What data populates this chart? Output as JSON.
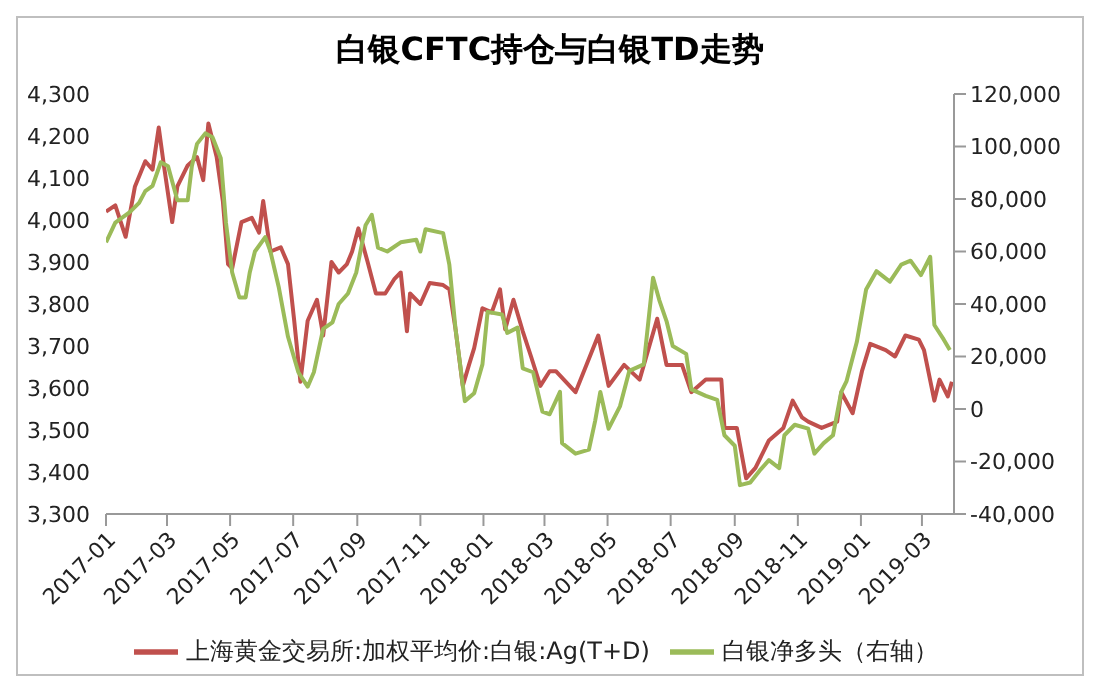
{
  "chart_data": {
    "type": "line",
    "title": "白银CFTC持仓与白银TD走势",
    "xlim": [
      "2017-01-01",
      "2019-04-01"
    ],
    "xticks": [
      "2017-01",
      "2017-03",
      "2017-05",
      "2017-07",
      "2017-09",
      "2017-11",
      "2018-01",
      "2018-03",
      "2018-05",
      "2018-07",
      "2018-09",
      "2018-11",
      "2019-01",
      "2019-03"
    ],
    "ylim": [
      3300,
      4300
    ],
    "yticks": [
      {
        "value": 3300,
        "label": "3,300"
      },
      {
        "value": 3400,
        "label": "3,400"
      },
      {
        "value": 3500,
        "label": "3,500"
      },
      {
        "value": 3600,
        "label": "3,600"
      },
      {
        "value": 3700,
        "label": "3,700"
      },
      {
        "value": 3800,
        "label": "3,800"
      },
      {
        "value": 3900,
        "label": "3,900"
      },
      {
        "value": 4000,
        "label": "4,000"
      },
      {
        "value": 4100,
        "label": "4,100"
      },
      {
        "value": 4200,
        "label": "4,200"
      },
      {
        "value": 4300,
        "label": "4,300"
      }
    ],
    "y2lim": [
      -40000,
      120000
    ],
    "y2ticks": [
      {
        "value": -40000,
        "label": "-40,000"
      },
      {
        "value": -20000,
        "label": "-20,000"
      },
      0,
      {
        "value": 20000,
        "label": "20,000"
      },
      {
        "value": 40000,
        "label": "40,000"
      },
      {
        "value": 60000,
        "label": "60,000"
      },
      {
        "value": 80000,
        "label": "80,000"
      },
      {
        "value": 100000,
        "label": "100,000"
      },
      {
        "value": 120000,
        "label": "120,000"
      }
    ],
    "grid": false,
    "legend": "bottom",
    "marker": "none",
    "series": [
      {
        "name": "上海黄金交易所:加权平均价:白银:Ag(T+D)",
        "color": "#c0504d",
        "x": [
          "2017-01-01",
          "2017-01-10",
          "2017-01-20",
          "2017-01-29",
          "2017-02-08",
          "2017-02-15",
          "2017-02-21",
          "2017-02-26",
          "2017-03-06",
          "2017-03-11",
          "2017-03-21",
          "2017-03-30",
          "2017-04-05",
          "2017-04-10",
          "2017-04-18",
          "2017-04-24",
          "2017-04-29",
          "2017-05-03",
          "2017-05-12",
          "2017-05-22",
          "2017-05-29",
          "2017-06-02",
          "2017-06-09",
          "2017-06-19",
          "2017-06-26",
          "2017-07-02",
          "2017-07-08",
          "2017-07-15",
          "2017-07-24",
          "2017-07-30",
          "2017-08-07",
          "2017-08-14",
          "2017-08-22",
          "2017-08-27",
          "2017-09-02",
          "2017-09-11",
          "2017-09-19",
          "2017-09-28",
          "2017-10-07",
          "2017-10-13",
          "2017-10-19",
          "2017-10-22",
          "2017-11-01",
          "2017-11-10",
          "2017-11-23",
          "2017-11-29",
          "2017-12-05",
          "2017-12-12",
          "2017-12-18",
          "2017-12-23",
          "2017-12-31",
          "2018-01-09",
          "2018-01-17",
          "2018-01-22",
          "2018-01-30",
          "2018-02-08",
          "2018-02-16",
          "2018-02-25",
          "2018-03-06",
          "2018-03-12",
          "2018-03-31",
          "2018-04-22",
          "2018-05-02",
          "2018-05-17",
          "2018-06-01",
          "2018-06-18",
          "2018-06-27",
          "2018-07-12",
          "2018-07-21",
          "2018-08-04",
          "2018-08-19",
          "2018-08-22",
          "2018-09-03",
          "2018-09-12",
          "2018-09-21",
          "2018-10-04",
          "2018-10-18",
          "2018-10-27",
          "2018-11-05",
          "2018-11-11",
          "2018-11-24",
          "2018-12-09",
          "2018-12-13",
          "2018-12-24",
          "2019-01-02",
          "2019-01-10",
          "2019-01-25",
          "2019-02-03",
          "2019-02-13",
          "2019-02-26",
          "2019-03-03",
          "2019-03-13",
          "2019-03-18",
          "2019-03-26",
          "2019-03-30"
        ],
        "values": [
          4020,
          4035,
          3960,
          4080,
          4140,
          4120,
          4220,
          4130,
          3995,
          4080,
          4130,
          4150,
          4095,
          4230,
          4150,
          4045,
          3895,
          3885,
          3995,
          4005,
          3970,
          4045,
          3925,
          3935,
          3895,
          3760,
          3615,
          3760,
          3810,
          3725,
          3900,
          3875,
          3895,
          3925,
          3980,
          3900,
          3825,
          3825,
          3860,
          3875,
          3735,
          3825,
          3800,
          3850,
          3845,
          3835,
          3740,
          3605,
          3655,
          3695,
          3790,
          3780,
          3835,
          3740,
          3810,
          3735,
          3675,
          3605,
          3640,
          3640,
          3590,
          3725,
          3605,
          3655,
          3620,
          3765,
          3655,
          3655,
          3590,
          3620,
          3620,
          3505,
          3505,
          3385,
          3410,
          3475,
          3505,
          3570,
          3530,
          3520,
          3505,
          3520,
          3590,
          3540,
          3640,
          3705,
          3690,
          3675,
          3725,
          3715,
          3690,
          3570,
          3620,
          3580,
          3615
        ]
      },
      {
        "name": "白银净多头（右轴）",
        "color": "#9bbb59",
        "axis": "y2",
        "x": [
          "2017-01-01",
          "2017-01-10",
          "2017-01-24",
          "2017-02-02",
          "2017-02-08",
          "2017-02-15",
          "2017-02-23",
          "2017-03-02",
          "2017-03-11",
          "2017-03-21",
          "2017-03-25",
          "2017-03-30",
          "2017-04-07",
          "2017-04-14",
          "2017-04-22",
          "2017-04-27",
          "2017-05-03",
          "2017-05-10",
          "2017-05-16",
          "2017-05-20",
          "2017-05-25",
          "2017-06-04",
          "2017-06-09",
          "2017-06-17",
          "2017-06-26",
          "2017-07-06",
          "2017-07-15",
          "2017-07-21",
          "2017-07-30",
          "2017-08-08",
          "2017-08-14",
          "2017-08-23",
          "2017-08-31",
          "2017-09-09",
          "2017-09-15",
          "2017-09-21",
          "2017-09-30",
          "2017-10-13",
          "2017-10-28",
          "2017-11-01",
          "2017-11-06",
          "2017-11-23",
          "2017-11-29",
          "2017-12-05",
          "2017-12-14",
          "2017-12-23",
          "2017-12-31",
          "2018-01-05",
          "2018-01-19",
          "2018-01-24",
          "2018-02-03",
          "2018-02-08",
          "2018-02-18",
          "2018-02-27",
          "2018-03-06",
          "2018-03-16",
          "2018-03-18",
          "2018-03-31",
          "2018-04-13",
          "2018-04-19",
          "2018-04-24",
          "2018-05-02",
          "2018-05-13",
          "2018-05-22",
          "2018-06-05",
          "2018-06-14",
          "2018-06-20",
          "2018-06-27",
          "2018-07-03",
          "2018-07-16",
          "2018-07-21",
          "2018-08-04",
          "2018-08-15",
          "2018-08-22",
          "2018-09-01",
          "2018-09-06",
          "2018-09-16",
          "2018-09-25",
          "2018-10-04",
          "2018-10-14",
          "2018-10-19",
          "2018-10-29",
          "2018-11-11",
          "2018-11-17",
          "2018-11-26",
          "2018-12-05",
          "2018-12-13",
          "2018-12-18",
          "2018-12-28",
          "2019-01-06",
          "2019-01-16",
          "2019-01-29",
          "2019-02-09",
          "2019-02-18",
          "2019-02-28",
          "2019-03-09",
          "2019-03-13",
          "2019-03-22",
          "2019-03-28"
        ],
        "values": [
          63500,
          71000,
          75000,
          78500,
          83000,
          85000,
          94000,
          92500,
          79500,
          79500,
          92500,
          101000,
          105000,
          103500,
          95500,
          71000,
          52000,
          42500,
          42500,
          52000,
          60000,
          65500,
          60000,
          46500,
          27500,
          14000,
          8500,
          14000,
          30500,
          33000,
          40000,
          44000,
          52000,
          70000,
          74000,
          61500,
          60000,
          63500,
          64500,
          60000,
          68500,
          67000,
          55000,
          30500,
          3000,
          6000,
          17000,
          37000,
          36000,
          29000,
          31000,
          15500,
          14000,
          -1000,
          -2000,
          6500,
          -13000,
          -17000,
          -15500,
          -4500,
          6500,
          -7500,
          1000,
          14500,
          17000,
          50000,
          41500,
          33500,
          24000,
          21000,
          7500,
          5000,
          3500,
          -10000,
          -14000,
          -29000,
          -28000,
          -23500,
          -19500,
          -22500,
          -10000,
          -6000,
          -7500,
          -17000,
          -13000,
          -10000,
          6500,
          10500,
          25500,
          45500,
          52500,
          48500,
          55000,
          56500,
          51000,
          58000,
          32000,
          26500,
          22500
        ]
      }
    ]
  }
}
